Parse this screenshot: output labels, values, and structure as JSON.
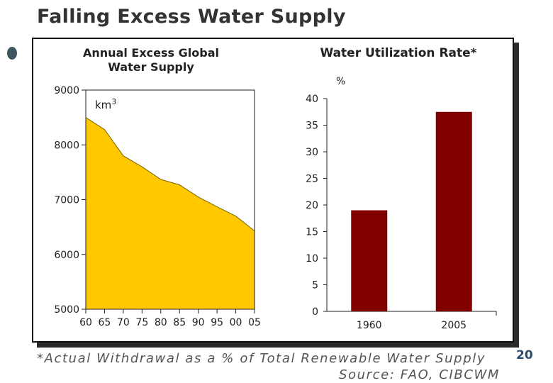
{
  "slide": {
    "title": "Falling Excess Water Supply",
    "footnote": "*Actual Withdrawal as a % of Total Renewable Water Supply",
    "source": "Source: FAO, CIBCWM",
    "page_number": "20"
  },
  "chart_data": [
    {
      "type": "area",
      "title": "Annual Excess Global Water Supply",
      "unit_label": "km3",
      "x": [
        1960,
        1965,
        1970,
        1975,
        1980,
        1985,
        1990,
        1995,
        2000,
        2005
      ],
      "y": [
        8500,
        8280,
        7800,
        7600,
        7370,
        7270,
        7050,
        6870,
        6700,
        6430
      ],
      "xtick_labels": [
        "60",
        "65",
        "70",
        "75",
        "80",
        "85",
        "90",
        "95",
        "00",
        "05"
      ],
      "ylim": [
        5000,
        9000
      ],
      "yticks": [
        5000,
        6000,
        7000,
        8000,
        9000
      ],
      "fill_color": "#ffc800",
      "grid": false
    },
    {
      "type": "bar",
      "title": "Water Utilization Rate*",
      "ylabel": "%",
      "categories": [
        "1960",
        "2005"
      ],
      "values": [
        19,
        37.5
      ],
      "ylim": [
        0,
        40
      ],
      "yticks": [
        0,
        5,
        10,
        15,
        20,
        25,
        30,
        35,
        40
      ],
      "bar_color": "#800000",
      "grid": false
    }
  ]
}
